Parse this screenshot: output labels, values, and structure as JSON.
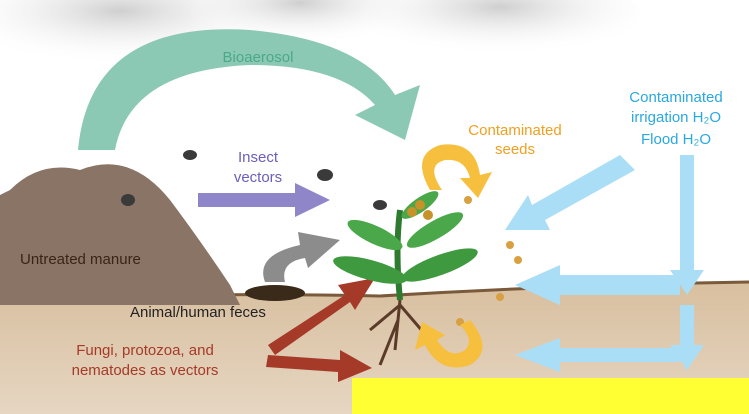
{
  "labels": {
    "bioaerosol": "Bioaerosol",
    "insect_vectors": [
      "Insect",
      "vectors"
    ],
    "contaminated_seeds": [
      "Contaminated",
      "seeds"
    ],
    "water": [
      "Contaminated",
      "irrigation H₂O",
      "Flood H₂O"
    ],
    "untreated_manure": "Untreated manure",
    "feces": "Animal/human feces",
    "fungi": [
      "Fungi, protozoa, and",
      "nematodes as vectors"
    ]
  }
}
